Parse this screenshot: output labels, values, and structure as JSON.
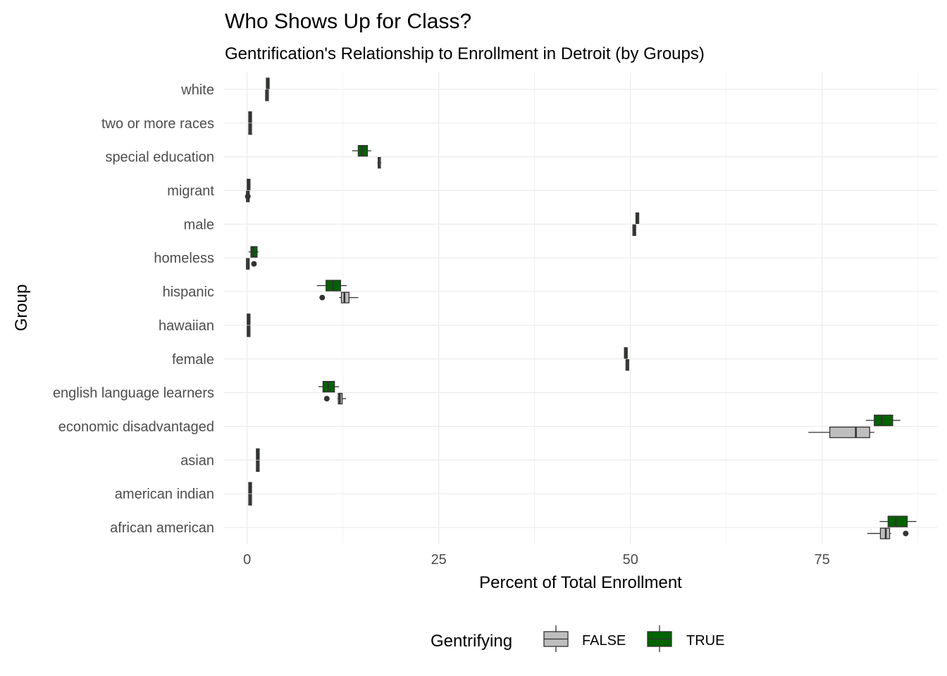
{
  "chart_data": {
    "type": "boxplot",
    "orientation": "horizontal",
    "title": "Who Shows Up for Class?",
    "subtitle": "Gentrification's Relationship to Enrollment in Detroit (by Groups)",
    "xlabel": "Percent of Total Enrollment",
    "ylabel": "Group",
    "xlim": [
      -3,
      90
    ],
    "x_ticks": [
      0,
      25,
      50,
      75
    ],
    "grid": true,
    "legend": {
      "title": "Gentrifying",
      "position": "bottom",
      "entries": [
        {
          "label": "FALSE",
          "color": "#bebebe"
        },
        {
          "label": "TRUE",
          "color": "#006400"
        }
      ]
    },
    "categories": [
      "white",
      "two or more races",
      "special education",
      "migrant",
      "male",
      "homeless",
      "hispanic",
      "hawaiian",
      "female",
      "english language learners",
      "economic disadvantaged",
      "asian",
      "american indian",
      "african american"
    ],
    "series": [
      {
        "name": "FALSE",
        "color": "#bebebe",
        "boxes": [
          {
            "category": "white",
            "min": 2.5,
            "q1": 2.55,
            "median": 2.6,
            "q3": 2.65,
            "max": 2.7,
            "outliers": []
          },
          {
            "category": "two or more races",
            "min": 0.3,
            "q1": 0.35,
            "median": 0.4,
            "q3": 0.45,
            "max": 0.5,
            "outliers": []
          },
          {
            "category": "special education",
            "min": 17.0,
            "q1": 17.1,
            "median": 17.2,
            "q3": 17.4,
            "max": 17.5,
            "outliers": []
          },
          {
            "category": "migrant",
            "min": 0.0,
            "q1": 0.05,
            "median": 0.1,
            "q3": 0.15,
            "max": 0.2,
            "outliers": [
              0.1
            ]
          },
          {
            "category": "male",
            "min": 50.3,
            "q1": 50.4,
            "median": 50.5,
            "q3": 50.6,
            "max": 50.7,
            "outliers": []
          },
          {
            "category": "homeless",
            "min": 0.0,
            "q1": 0.05,
            "median": 0.1,
            "q3": 0.15,
            "max": 0.2,
            "outliers": [
              0.9
            ]
          },
          {
            "category": "hispanic",
            "min": 12.0,
            "q1": 12.3,
            "median": 12.7,
            "q3": 13.3,
            "max": 14.5,
            "outliers": [
              9.8
            ]
          },
          {
            "category": "hawaiian",
            "min": 0.1,
            "q1": 0.15,
            "median": 0.2,
            "q3": 0.25,
            "max": 0.3,
            "outliers": []
          },
          {
            "category": "female",
            "min": 49.4,
            "q1": 49.5,
            "median": 49.6,
            "q3": 49.7,
            "max": 49.8,
            "outliers": []
          },
          {
            "category": "english language learners",
            "min": 11.8,
            "q1": 11.9,
            "median": 12.1,
            "q3": 12.4,
            "max": 12.9,
            "outliers": [
              10.4
            ]
          },
          {
            "category": "economic disadvantaged",
            "min": 73.2,
            "q1": 76.0,
            "median": 79.4,
            "q3": 81.2,
            "max": 81.8,
            "outliers": []
          },
          {
            "category": "asian",
            "min": 1.3,
            "q1": 1.35,
            "median": 1.4,
            "q3": 1.45,
            "max": 1.5,
            "outliers": []
          },
          {
            "category": "american indian",
            "min": 0.3,
            "q1": 0.35,
            "median": 0.4,
            "q3": 0.45,
            "max": 0.5,
            "outliers": []
          },
          {
            "category": "african american",
            "min": 80.9,
            "q1": 82.6,
            "median": 83.3,
            "q3": 83.8,
            "max": 84.0,
            "outliers": [
              85.9
            ]
          }
        ]
      },
      {
        "name": "TRUE",
        "color": "#006400",
        "boxes": [
          {
            "category": "white",
            "min": 2.6,
            "q1": 2.65,
            "median": 2.7,
            "q3": 2.75,
            "max": 2.8,
            "outliers": []
          },
          {
            "category": "two or more races",
            "min": 0.3,
            "q1": 0.35,
            "median": 0.4,
            "q3": 0.45,
            "max": 0.5,
            "outliers": []
          },
          {
            "category": "special education",
            "min": 13.7,
            "q1": 14.5,
            "median": 15.0,
            "q3": 15.7,
            "max": 16.2,
            "outliers": []
          },
          {
            "category": "migrant",
            "min": 0.1,
            "q1": 0.15,
            "median": 0.2,
            "q3": 0.25,
            "max": 0.3,
            "outliers": []
          },
          {
            "category": "male",
            "min": 50.7,
            "q1": 50.8,
            "median": 50.9,
            "q3": 51.0,
            "max": 51.1,
            "outliers": []
          },
          {
            "category": "homeless",
            "min": 0.2,
            "q1": 0.5,
            "median": 0.8,
            "q3": 1.3,
            "max": 1.5,
            "outliers": []
          },
          {
            "category": "hispanic",
            "min": 9.1,
            "q1": 10.3,
            "median": 11.2,
            "q3": 12.2,
            "max": 13.0,
            "outliers": []
          },
          {
            "category": "hawaiian",
            "min": 0.1,
            "q1": 0.15,
            "median": 0.2,
            "q3": 0.25,
            "max": 0.3,
            "outliers": []
          },
          {
            "category": "female",
            "min": 49.2,
            "q1": 49.3,
            "median": 49.4,
            "q3": 49.5,
            "max": 49.6,
            "outliers": []
          },
          {
            "category": "english language learners",
            "min": 9.3,
            "q1": 9.9,
            "median": 10.6,
            "q3": 11.4,
            "max": 12.0,
            "outliers": []
          },
          {
            "category": "economic disadvantaged",
            "min": 80.7,
            "q1": 81.8,
            "median": 82.8,
            "q3": 84.2,
            "max": 85.2,
            "outliers": []
          },
          {
            "category": "asian",
            "min": 1.3,
            "q1": 1.35,
            "median": 1.4,
            "q3": 1.45,
            "max": 1.5,
            "outliers": []
          },
          {
            "category": "american indian",
            "min": 0.3,
            "q1": 0.35,
            "median": 0.4,
            "q3": 0.45,
            "max": 0.5,
            "outliers": []
          },
          {
            "category": "african american",
            "min": 82.5,
            "q1": 83.6,
            "median": 84.6,
            "q3": 86.1,
            "max": 87.3,
            "outliers": []
          }
        ]
      }
    ]
  }
}
